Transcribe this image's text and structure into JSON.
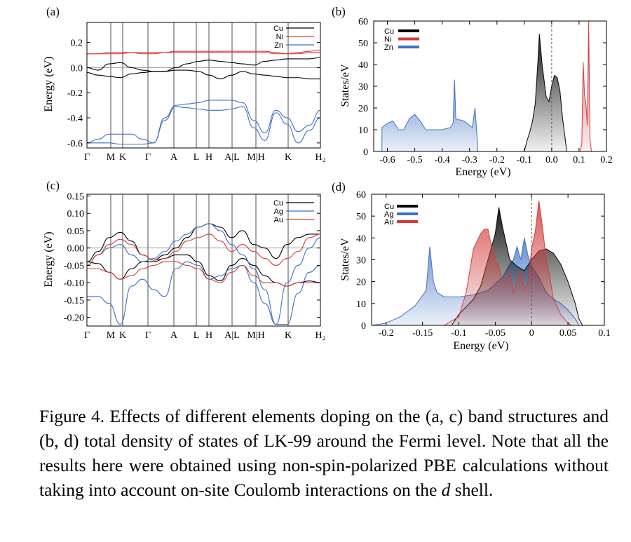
{
  "caption": {
    "label": "Figure 4.",
    "text_before_italic": "Effects of different elements doping on the (a, c) band structures and (b, d) total density of states of LK-99 around the Fermi level.  Note that all the results here were obtained using non-spin-polarized PBE calculations without taking into account on-site Coulomb interactions on the",
    "italic": "d",
    "text_after_italic": "shell."
  },
  "colors": {
    "black": "#000000",
    "red": "#d23c3c",
    "blue": "#3d6fc4",
    "gray": "#999999"
  },
  "chart_data": [
    {
      "panel": "(a)",
      "type": "line",
      "title": "",
      "xlabel": "",
      "ylabel": "Energy (eV)",
      "ylim": [
        -0.64,
        0.36
      ],
      "yticks": [
        "0.2",
        "0.0",
        "-0.2",
        "-0.4",
        "-0.6"
      ],
      "ytick_values": [
        0.2,
        0.0,
        -0.2,
        -0.4,
        -0.6
      ],
      "kpoints": [
        "Γ",
        "M",
        "K",
        "Γ",
        "A",
        "L",
        "H",
        "A|L",
        "M|H",
        "K",
        "H₂"
      ],
      "legend": [
        "Cu",
        "Ni",
        "Zn"
      ],
      "series": [
        {
          "name": "Cu",
          "color": "black",
          "bands": [
            [
              0.0,
              -0.02,
              0.03,
              0.04,
              0.0,
              -0.02,
              -0.03,
              -0.03,
              0.0,
              0.03,
              0.05,
              0.06,
              0.05,
              0.04,
              0.03,
              0.02,
              0.05,
              0.06,
              0.07,
              0.07,
              0.07,
              0.08
            ],
            [
              -0.04,
              -0.06,
              -0.07,
              -0.08,
              -0.05,
              -0.04,
              -0.03,
              -0.03,
              -0.02,
              -0.02,
              -0.03,
              -0.06,
              -0.09,
              -0.06,
              -0.03,
              -0.05,
              -0.06,
              -0.07,
              -0.08,
              -0.08,
              -0.09,
              -0.09
            ]
          ]
        },
        {
          "name": "Ni",
          "color": "red",
          "bands": [
            [
              0.11,
              0.11,
              0.12,
              0.12,
              0.12,
              0.11,
              0.11,
              0.12,
              0.13,
              0.13,
              0.13,
              0.13,
              0.13,
              0.13,
              0.13,
              0.13,
              0.13,
              0.12,
              0.11,
              0.12,
              0.13,
              0.14
            ],
            [
              0.11,
              0.11,
              0.11,
              0.11,
              0.12,
              0.12,
              0.12,
              0.12,
              0.12,
              0.12,
              0.12,
              0.12,
              0.12,
              0.12,
              0.12,
              0.12,
              0.12,
              0.11,
              0.11,
              0.11,
              0.12,
              0.12
            ]
          ]
        },
        {
          "name": "Zn",
          "color": "blue",
          "bands": [
            [
              -0.6,
              -0.57,
              -0.53,
              -0.53,
              -0.53,
              -0.57,
              -0.6,
              -0.4,
              -0.3,
              -0.29,
              -0.28,
              -0.26,
              -0.26,
              -0.26,
              -0.28,
              -0.42,
              -0.52,
              -0.34,
              -0.4,
              -0.51,
              -0.46,
              -0.34
            ],
            [
              -0.6,
              -0.6,
              -0.6,
              -0.61,
              -0.61,
              -0.61,
              -0.6,
              -0.42,
              -0.31,
              -0.32,
              -0.33,
              -0.34,
              -0.34,
              -0.33,
              -0.31,
              -0.48,
              -0.58,
              -0.36,
              -0.45,
              -0.6,
              -0.5,
              -0.4
            ]
          ]
        }
      ]
    },
    {
      "panel": "(b)",
      "type": "area",
      "title": "",
      "xlabel": "Energy (eV)",
      "ylabel": "States/eV",
      "xlim": [
        -0.65,
        0.2
      ],
      "ylim": [
        0,
        60
      ],
      "xticks": [
        "-0.6",
        "-0.5",
        "-0.4",
        "-0.3",
        "-0.2",
        "-0.1",
        "0.0",
        "0.1",
        "0.2"
      ],
      "xtick_values": [
        -0.6,
        -0.5,
        -0.4,
        -0.3,
        -0.2,
        -0.1,
        0.0,
        0.1,
        0.2
      ],
      "yticks": [
        "0",
        "10",
        "20",
        "30",
        "40",
        "50",
        "60"
      ],
      "ytick_values": [
        0,
        10,
        20,
        30,
        40,
        50,
        60
      ],
      "legend": [
        "Cu",
        "Ni",
        "Zn"
      ],
      "series": [
        {
          "name": "Cu",
          "color": "black",
          "points": [
            [
              -0.1,
              0
            ],
            [
              -0.09,
              5
            ],
            [
              -0.08,
              9
            ],
            [
              -0.07,
              14
            ],
            [
              -0.06,
              22
            ],
            [
              -0.05,
              42
            ],
            [
              -0.045,
              54
            ],
            [
              -0.035,
              40
            ],
            [
              -0.02,
              25
            ],
            [
              -0.01,
              23
            ],
            [
              0.0,
              30
            ],
            [
              0.01,
              35
            ],
            [
              0.02,
              34
            ],
            [
              0.03,
              28
            ],
            [
              0.04,
              15
            ],
            [
              0.05,
              5
            ],
            [
              0.055,
              0
            ]
          ]
        },
        {
          "name": "Ni",
          "color": "red",
          "points": [
            [
              0.105,
              0
            ],
            [
              0.11,
              4
            ],
            [
              0.115,
              41
            ],
            [
              0.12,
              26
            ],
            [
              0.125,
              22
            ],
            [
              0.13,
              12
            ],
            [
              0.135,
              60
            ],
            [
              0.14,
              5
            ],
            [
              0.145,
              0
            ]
          ]
        },
        {
          "name": "Zn",
          "color": "blue",
          "points": [
            [
              -0.62,
              0
            ],
            [
              -0.62,
              11
            ],
            [
              -0.6,
              13
            ],
            [
              -0.58,
              14
            ],
            [
              -0.56,
              10
            ],
            [
              -0.54,
              10
            ],
            [
              -0.52,
              15
            ],
            [
              -0.5,
              17
            ],
            [
              -0.48,
              14
            ],
            [
              -0.46,
              10
            ],
            [
              -0.4,
              10
            ],
            [
              -0.37,
              11
            ],
            [
              -0.36,
              13
            ],
            [
              -0.355,
              33
            ],
            [
              -0.35,
              15
            ],
            [
              -0.32,
              14
            ],
            [
              -0.3,
              12
            ],
            [
              -0.29,
              11
            ],
            [
              -0.28,
              20
            ],
            [
              -0.27,
              2
            ],
            [
              -0.27,
              0
            ]
          ]
        }
      ]
    },
    {
      "panel": "(c)",
      "type": "line",
      "title": "",
      "xlabel": "",
      "ylabel": "Energy (eV)",
      "ylim": [
        -0.225,
        0.155
      ],
      "yticks": [
        "0.15",
        "0.10",
        "0.05",
        "0.00",
        "-0.05",
        "-0.10",
        "-0.15",
        "-0.20"
      ],
      "ytick_values": [
        0.15,
        0.1,
        0.05,
        0.0,
        -0.05,
        -0.1,
        -0.15,
        -0.2
      ],
      "kpoints": [
        "Γ",
        "M",
        "K",
        "Γ",
        "A",
        "L",
        "H",
        "A|L",
        "M|H",
        "K",
        "H₂"
      ],
      "legend": [
        "Cu",
        "Ag",
        "Au"
      ],
      "series": [
        {
          "name": "Cu",
          "color": "black",
          "bands": [
            [
              -0.04,
              -0.01,
              0.03,
              0.045,
              0.02,
              -0.02,
              -0.035,
              -0.02,
              0.0,
              0.03,
              0.06,
              0.07,
              0.06,
              0.03,
              0.05,
              0.01,
              0.0,
              -0.03,
              0.01,
              0.03,
              0.04,
              0.04
            ],
            [
              -0.04,
              -0.045,
              -0.07,
              -0.09,
              -0.06,
              -0.04,
              -0.04,
              -0.03,
              -0.02,
              -0.02,
              -0.04,
              -0.08,
              -0.095,
              -0.05,
              -0.03,
              -0.05,
              -0.08,
              -0.1,
              -0.11,
              -0.1,
              -0.095,
              -0.1
            ]
          ]
        },
        {
          "name": "Ag",
          "color": "blue",
          "bands": [
            [
              -0.05,
              -0.02,
              0.0,
              0.01,
              -0.02,
              -0.04,
              -0.03,
              -0.01,
              0.02,
              0.04,
              0.06,
              0.07,
              0.05,
              0.01,
              -0.02,
              -0.06,
              -0.12,
              -0.22,
              -0.1,
              -0.05,
              0.0,
              0.03
            ],
            [
              -0.14,
              -0.14,
              -0.16,
              -0.22,
              -0.11,
              -0.09,
              -0.12,
              -0.14,
              -0.06,
              -0.04,
              -0.05,
              -0.09,
              -0.08,
              -0.06,
              -0.05,
              -0.1,
              -0.16,
              -0.22,
              -0.22,
              -0.13,
              -0.07,
              -0.05
            ]
          ]
        },
        {
          "name": "Au",
          "color": "red",
          "bands": [
            [
              -0.05,
              -0.02,
              0.01,
              0.025,
              0.01,
              -0.02,
              -0.035,
              -0.03,
              -0.01,
              0.02,
              0.03,
              0.04,
              0.02,
              -0.01,
              0.01,
              -0.01,
              -0.03,
              -0.05,
              -0.03,
              -0.01,
              0.03,
              0.04
            ],
            [
              -0.06,
              -0.06,
              -0.07,
              -0.09,
              -0.08,
              -0.06,
              -0.05,
              -0.04,
              -0.04,
              -0.05,
              -0.06,
              -0.09,
              -0.1,
              -0.07,
              -0.05,
              -0.08,
              -0.1,
              -0.1,
              -0.11,
              -0.1,
              -0.1,
              -0.1
            ]
          ]
        }
      ]
    },
    {
      "panel": "(d)",
      "type": "area",
      "title": "",
      "xlabel": "Energy (eV)",
      "ylabel": "States/eV",
      "xlim": [
        -0.22,
        0.1
      ],
      "ylim": [
        0,
        60
      ],
      "xticks": [
        "-0.2",
        "-0.15",
        "-0.1",
        "-0.05",
        "0",
        "0.05",
        "0.1"
      ],
      "xtick_values": [
        -0.2,
        -0.15,
        -0.1,
        -0.05,
        0.0,
        0.05,
        0.1
      ],
      "yticks": [
        "0",
        "10",
        "20",
        "30",
        "40",
        "50",
        "60"
      ],
      "ytick_values": [
        0,
        10,
        20,
        30,
        40,
        50,
        60
      ],
      "legend": [
        "Cu",
        "Ag",
        "Au"
      ],
      "series": [
        {
          "name": "Ag",
          "color": "blue",
          "points": [
            [
              -0.22,
              0
            ],
            [
              -0.2,
              1
            ],
            [
              -0.18,
              4
            ],
            [
              -0.16,
              9
            ],
            [
              -0.145,
              16
            ],
            [
              -0.14,
              36
            ],
            [
              -0.135,
              20
            ],
            [
              -0.13,
              15
            ],
            [
              -0.12,
              13
            ],
            [
              -0.1,
              13
            ],
            [
              -0.08,
              14
            ],
            [
              -0.06,
              16
            ],
            [
              -0.04,
              22
            ],
            [
              -0.03,
              28
            ],
            [
              -0.025,
              30
            ],
            [
              -0.02,
              36
            ],
            [
              -0.015,
              30
            ],
            [
              -0.01,
              40
            ],
            [
              -0.005,
              32
            ],
            [
              0.0,
              27
            ],
            [
              0.01,
              22
            ],
            [
              0.02,
              15
            ],
            [
              0.03,
              12
            ],
            [
              0.04,
              10
            ],
            [
              0.05,
              7
            ],
            [
              0.06,
              3
            ],
            [
              0.065,
              0
            ]
          ]
        },
        {
          "name": "Cu",
          "color": "black",
          "points": [
            [
              -0.11,
              0
            ],
            [
              -0.1,
              5
            ],
            [
              -0.08,
              12
            ],
            [
              -0.07,
              18
            ],
            [
              -0.06,
              30
            ],
            [
              -0.05,
              42
            ],
            [
              -0.045,
              54
            ],
            [
              -0.04,
              45
            ],
            [
              -0.03,
              30
            ],
            [
              -0.02,
              27
            ],
            [
              -0.01,
              25
            ],
            [
              0.0,
              30
            ],
            [
              0.01,
              34
            ],
            [
              0.02,
              35
            ],
            [
              0.03,
              33
            ],
            [
              0.04,
              28
            ],
            [
              0.05,
              20
            ],
            [
              0.06,
              10
            ],
            [
              0.065,
              3
            ],
            [
              0.07,
              0
            ]
          ]
        },
        {
          "name": "Au",
          "color": "red",
          "points": [
            [
              -0.12,
              0
            ],
            [
              -0.1,
              4
            ],
            [
              -0.09,
              15
            ],
            [
              -0.085,
              25
            ],
            [
              -0.08,
              35
            ],
            [
              -0.07,
              42
            ],
            [
              -0.065,
              44
            ],
            [
              -0.06,
              44
            ],
            [
              -0.055,
              36
            ],
            [
              -0.05,
              30
            ],
            [
              -0.045,
              27
            ],
            [
              -0.04,
              20
            ],
            [
              -0.035,
              21
            ],
            [
              -0.03,
              25
            ],
            [
              -0.025,
              15
            ],
            [
              -0.02,
              20
            ],
            [
              -0.015,
              25
            ],
            [
              -0.01,
              16
            ],
            [
              -0.005,
              20
            ],
            [
              0.0,
              35
            ],
            [
              0.005,
              43
            ],
            [
              0.01,
              57
            ],
            [
              0.015,
              45
            ],
            [
              0.02,
              30
            ],
            [
              0.025,
              22
            ],
            [
              0.03,
              12
            ],
            [
              0.04,
              5
            ],
            [
              0.05,
              1
            ],
            [
              0.055,
              0
            ]
          ]
        }
      ]
    }
  ]
}
